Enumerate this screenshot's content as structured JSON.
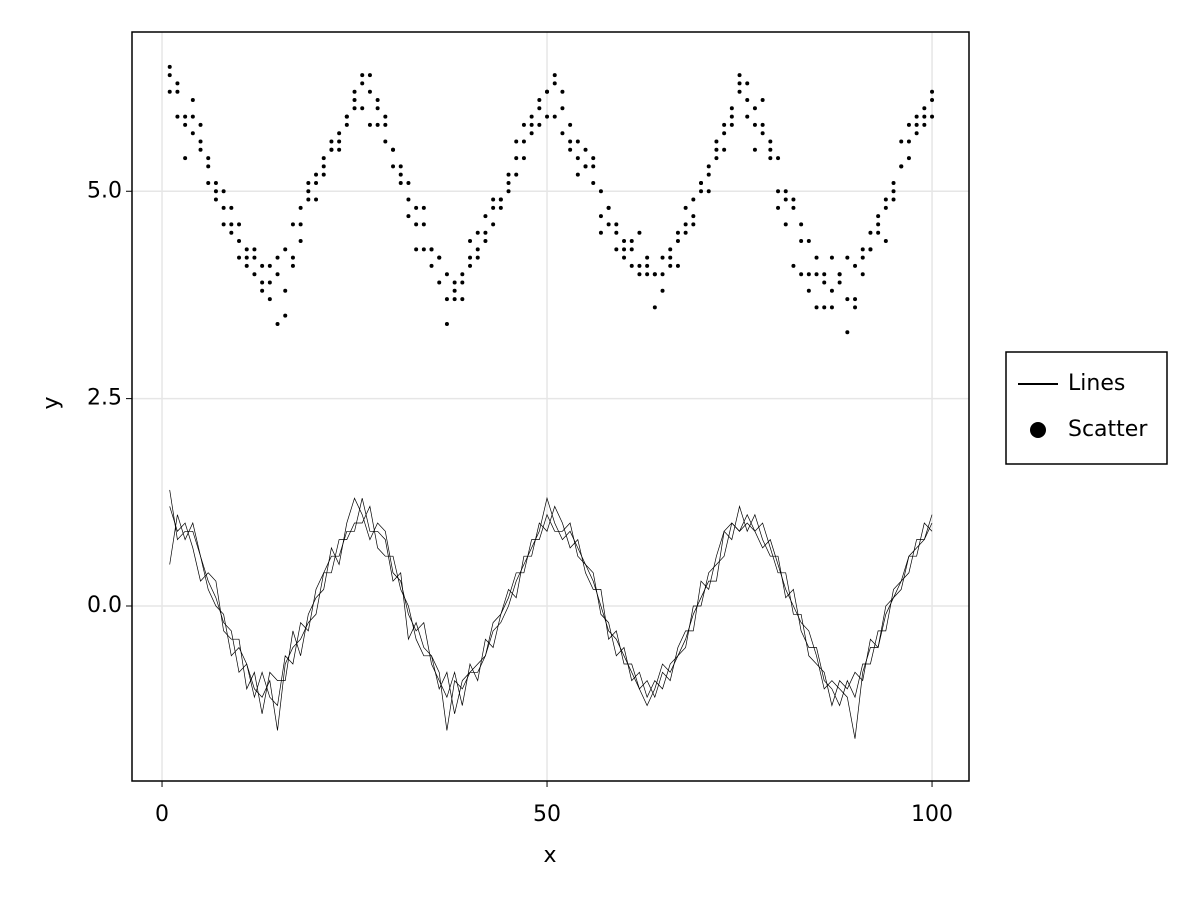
{
  "chart_data": {
    "type": "line+scatter",
    "xlabel": "x",
    "ylabel": "y",
    "xlim": [
      -3.9,
      104.8
    ],
    "ylim": [
      -2.11,
      6.92
    ],
    "xticks": [
      0,
      50,
      100
    ],
    "yticks": [
      {
        "value": 0,
        "label": "0.0"
      },
      2.5,
      {
        "value": 5,
        "label": "5.0"
      }
    ],
    "grid": true,
    "legend": "right",
    "x": [
      1,
      2,
      3,
      4,
      5,
      6,
      7,
      8,
      9,
      10,
      11,
      12,
      13,
      14,
      15,
      16,
      17,
      18,
      19,
      20,
      21,
      22,
      23,
      24,
      25,
      26,
      27,
      28,
      29,
      30,
      31,
      32,
      33,
      34,
      35,
      36,
      37,
      38,
      39,
      40,
      41,
      42,
      43,
      44,
      45,
      46,
      47,
      48,
      49,
      50,
      51,
      52,
      53,
      54,
      55,
      56,
      57,
      58,
      59,
      60,
      61,
      62,
      63,
      64,
      65,
      66,
      67,
      68,
      69,
      70,
      71,
      72,
      73,
      74,
      75,
      76,
      77,
      78,
      79,
      80,
      81,
      82,
      83,
      84,
      85,
      86,
      87,
      88,
      89,
      90,
      91,
      92,
      93,
      94,
      95,
      96,
      97,
      98,
      99,
      100
    ],
    "series": [
      {
        "name": "Lines",
        "type": "line",
        "color": "#000000",
        "values": [
          [
            1.2,
            0.9,
            1.0,
            0.7,
            0.3,
            0.4,
            0.3,
            -0.3,
            -0.4,
            -0.4,
            -1.0,
            -0.8,
            -1.3,
            -0.8,
            -0.9,
            -0.9,
            -0.3,
            -0.6,
            -0.1,
            0.1,
            0.2,
            0.7,
            0.5,
            1.0,
            1.3,
            1.1,
            0.8,
            1.0,
            0.9,
            0.4,
            0.3,
            -0.1,
            -0.3,
            -0.2,
            -0.7,
            -0.9,
            -1.1,
            -0.8,
            -1.2,
            -0.7,
            -0.9,
            -0.4,
            -0.5,
            -0.1,
            0.2,
            0.1,
            0.6,
            0.6,
            1.0,
            0.9,
            1.2,
            1.0,
            0.7,
            0.8,
            0.4,
            0.2,
            0.2,
            -0.4,
            -0.3,
            -0.7,
            -0.7,
            -1.0,
            -0.9,
            -1.1,
            -0.8,
            -0.9,
            -0.5,
            -0.3,
            -0.3,
            0.3,
            0.2,
            0.6,
            0.9,
            0.8,
            1.2,
            0.9,
            1.1,
            0.8,
            0.6,
            0.6,
            0.1,
            0.2,
            -0.3,
            -0.5,
            -0.5,
            -0.9,
            -1.0,
            -1.2,
            -0.9,
            -1.1,
            -0.7,
            -0.7,
            -0.3,
            -0.3,
            0.2,
            0.3,
            0.4,
            0.8,
            0.8,
            1.1
          ],
          [
            0.5,
            1.1,
            0.8,
            1.0,
            0.6,
            0.2,
            0.0,
            -0.1,
            -0.6,
            -0.5,
            -0.7,
            -1.1,
            -0.8,
            -1.1,
            -1.2,
            -0.6,
            -0.7,
            -0.2,
            -0.3,
            0.2,
            0.4,
            0.4,
            0.8,
            0.8,
            1.0,
            1.0,
            1.2,
            0.7,
            0.6,
            0.6,
            0.2,
            0.0,
            -0.4,
            -0.6,
            -0.6,
            -1.0,
            -0.8,
            -1.3,
            -0.9,
            -0.8,
            -0.7,
            -0.6,
            -0.2,
            -0.1,
            0.1,
            0.4,
            0.4,
            0.8,
            0.8,
            1.1,
            0.9,
            0.9,
            1.0,
            0.6,
            0.5,
            0.4,
            -0.1,
            -0.2,
            -0.6,
            -0.5,
            -0.9,
            -0.8,
            -1.1,
            -0.9,
            -1.0,
            -0.7,
            -0.6,
            -0.5,
            0.0,
            0.0,
            0.4,
            0.5,
            0.6,
            1.0,
            0.9,
            1.1,
            0.9,
            1.0,
            0.7,
            0.4,
            0.4,
            -0.1,
            -0.1,
            -0.6,
            -0.7,
            -0.8,
            -1.2,
            -0.9,
            -1.0,
            -0.8,
            -0.9,
            -0.4,
            -0.5,
            0.0,
            0.1,
            0.3,
            0.6,
            0.6,
            1.0,
            0.9
          ],
          [
            1.4,
            0.8,
            0.9,
            0.9,
            0.6,
            0.3,
            0.1,
            -0.2,
            -0.3,
            -0.8,
            -0.7,
            -1.0,
            -1.1,
            -0.9,
            -1.5,
            -0.7,
            -0.5,
            -0.4,
            -0.2,
            -0.1,
            0.4,
            0.6,
            0.6,
            0.9,
            0.9,
            1.3,
            0.9,
            0.9,
            0.8,
            0.3,
            0.4,
            -0.4,
            -0.2,
            -0.5,
            -0.6,
            -0.8,
            -1.5,
            -0.9,
            -1.0,
            -0.8,
            -0.8,
            -0.6,
            -0.3,
            -0.2,
            0.0,
            0.3,
            0.5,
            0.7,
            0.9,
            1.3,
            1.0,
            0.8,
            0.9,
            0.7,
            0.5,
            0.3,
            0.0,
            -0.3,
            -0.4,
            -0.6,
            -0.8,
            -1.0,
            -1.2,
            -1.0,
            -0.7,
            -0.8,
            -0.6,
            -0.4,
            -0.1,
            0.1,
            0.3,
            0.3,
            0.9,
            1.0,
            0.9,
            1.0,
            0.9,
            0.7,
            0.8,
            0.5,
            0.2,
            0.0,
            -0.2,
            -0.3,
            -0.6,
            -1.0,
            -0.9,
            -1.0,
            -1.1,
            -1.6,
            -0.8,
            -0.5,
            -0.5,
            -0.1,
            0.1,
            0.2,
            0.6,
            0.7,
            0.8,
            1.0
          ]
        ]
      },
      {
        "name": "Scatter",
        "type": "scatter",
        "color": "#000000",
        "values": [
          [
            6.4,
            5.9,
            5.8,
            5.7,
            5.6,
            5.1,
            5.1,
            4.8,
            4.5,
            4.4,
            4.3,
            4.0,
            3.9,
            4.1,
            4.2,
            4.3,
            4.6,
            4.8,
            5.0,
            5.1,
            5.4,
            5.5,
            5.6,
            5.9,
            6.0,
            6.3,
            5.8,
            5.8,
            5.6,
            5.5,
            5.3,
            5.1,
            4.8,
            4.6,
            4.3,
            4.2,
            4.0,
            3.8,
            3.9,
            4.2,
            4.3,
            4.5,
            4.6,
            4.8,
            5.1,
            5.2,
            5.6,
            5.7,
            5.8,
            5.9,
            6.3,
            6.0,
            5.8,
            5.6,
            5.3,
            5.3,
            5.0,
            4.8,
            4.5,
            4.4,
            4.3,
            4.1,
            4.0,
            4.0,
            4.2,
            4.3,
            4.4,
            4.5,
            4.7,
            5.0,
            5.3,
            5.5,
            5.8,
            5.8,
            6.3,
            5.9,
            6.0,
            5.8,
            5.5,
            5.4,
            5.0,
            4.8,
            4.6,
            4.4,
            4.2,
            4.0,
            3.8,
            3.9,
            4.2,
            4.1,
            4.3,
            4.5,
            4.6,
            4.9,
            5.1,
            5.3,
            5.6,
            5.7,
            5.8,
            6.1
          ],
          [
            6.2,
            6.3,
            5.4,
            5.9,
            5.8,
            5.4,
            4.9,
            5.0,
            4.8,
            4.6,
            4.1,
            4.3,
            3.8,
            3.7,
            4.0,
            3.8,
            4.2,
            4.6,
            4.9,
            5.2,
            5.3,
            5.5,
            5.7,
            5.9,
            6.1,
            6.0,
            6.2,
            6.0,
            5.8,
            5.3,
            5.2,
            4.9,
            4.6,
            4.3,
            4.3,
            4.2,
            3.4,
            3.7,
            4.0,
            4.1,
            4.2,
            4.4,
            4.8,
            4.9,
            5.0,
            5.4,
            5.4,
            5.9,
            6.0,
            6.2,
            5.9,
            5.7,
            5.5,
            5.4,
            5.3,
            5.1,
            4.7,
            4.6,
            4.6,
            4.3,
            4.1,
            4.0,
            4.2,
            4.0,
            3.8,
            4.1,
            4.5,
            4.6,
            4.9,
            5.1,
            5.2,
            5.4,
            5.7,
            6.0,
            6.2,
            6.1,
            5.5,
            5.7,
            5.6,
            5.0,
            4.9,
            4.9,
            4.4,
            4.0,
            4.0,
            3.6,
            4.2,
            4.0,
            3.7,
            3.6,
            4.2,
            4.3,
            4.5,
            4.8,
            5.0,
            5.3,
            5.4,
            5.9,
            6.0,
            5.9
          ],
          [
            6.5,
            6.2,
            5.9,
            6.1,
            5.5,
            5.3,
            5.0,
            4.6,
            4.6,
            4.2,
            4.2,
            4.2,
            4.1,
            3.9,
            3.4,
            3.5,
            4.1,
            4.4,
            5.1,
            4.9,
            5.2,
            5.6,
            5.5,
            5.8,
            6.2,
            6.4,
            6.4,
            6.1,
            5.9,
            5.5,
            5.1,
            4.7,
            4.3,
            4.8,
            4.1,
            3.9,
            3.7,
            3.9,
            3.7,
            4.4,
            4.5,
            4.7,
            4.9,
            4.9,
            5.2,
            5.6,
            5.8,
            5.8,
            6.1,
            6.2,
            6.4,
            6.2,
            5.6,
            5.2,
            5.5,
            5.4,
            4.5,
            4.8,
            4.3,
            4.2,
            4.4,
            4.5,
            4.1,
            3.6,
            4.0,
            4.2,
            4.1,
            4.8,
            4.6,
            5.1,
            5.0,
            5.6,
            5.5,
            5.9,
            6.4,
            6.3,
            5.8,
            6.1,
            5.4,
            4.8,
            4.6,
            4.1,
            4.0,
            3.8,
            3.6,
            3.9,
            3.6,
            4.0,
            3.3,
            3.7,
            4.0,
            4.3,
            4.7,
            4.4,
            4.9,
            5.6,
            5.8,
            5.8,
            5.9,
            6.2
          ]
        ]
      }
    ]
  }
}
